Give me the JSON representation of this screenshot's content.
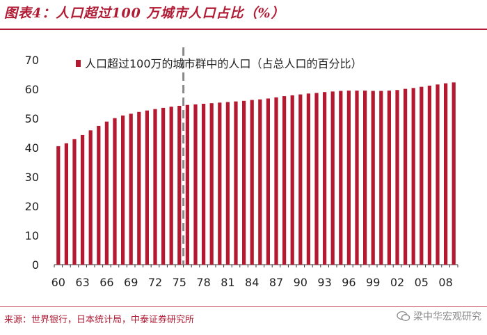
{
  "header": {
    "title": "图表4：人口超过100 万城市人口占比（%）"
  },
  "footer": {
    "source": "来源：世界银行，日本统计局，中泰证券研究所",
    "watermark": "梁中华宏观研究"
  },
  "colors": {
    "accent": "#b01a33",
    "bar": "#b5192f",
    "divider": "#888888"
  },
  "chart_data": {
    "type": "bar",
    "title": "",
    "xlabel": "",
    "ylabel": "",
    "ylim": [
      0,
      70
    ],
    "yticks": [
      0,
      10,
      20,
      30,
      40,
      50,
      60,
      70
    ],
    "x_tick_labels": [
      "60",
      "63",
      "66",
      "69",
      "72",
      "75",
      "78",
      "81",
      "84",
      "87",
      "90",
      "93",
      "96",
      "99",
      "02",
      "05",
      "08"
    ],
    "tick_every": 3,
    "years": [
      1960,
      1961,
      1962,
      1963,
      1964,
      1965,
      1966,
      1967,
      1968,
      1969,
      1970,
      1971,
      1972,
      1973,
      1974,
      1975,
      1976,
      1977,
      1978,
      1979,
      1980,
      1981,
      1982,
      1983,
      1984,
      1985,
      1986,
      1987,
      1988,
      1989,
      1990,
      1991,
      1992,
      1993,
      1994,
      1995,
      1996,
      1997,
      1998,
      1999,
      2000,
      2001,
      2002,
      2003,
      2004,
      2005,
      2006,
      2007,
      2008,
      2009
    ],
    "series": [
      {
        "name": "人口超过100万的城市群中的人口（占总人口的百分比）",
        "values": [
          40.5,
          41.5,
          42.9,
          44.3,
          45.9,
          47.4,
          48.9,
          50.1,
          51.0,
          51.6,
          52.2,
          52.7,
          53.2,
          53.6,
          54.0,
          54.3,
          54.6,
          54.8,
          55.0,
          55.2,
          55.4,
          55.6,
          55.8,
          56.0,
          56.3,
          56.5,
          56.8,
          57.2,
          57.6,
          57.9,
          58.2,
          58.5,
          58.7,
          59.0,
          59.2,
          59.4,
          59.5,
          59.5,
          59.5,
          59.4,
          59.4,
          59.5,
          59.7,
          60.1,
          60.4,
          60.8,
          61.2,
          61.6,
          62.0,
          62.3
        ]
      }
    ],
    "divider_after_label": "75",
    "legend_position": "top-left",
    "grid": false
  }
}
